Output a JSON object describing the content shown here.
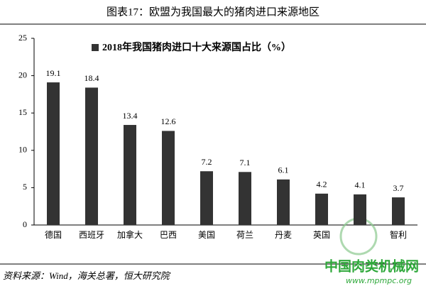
{
  "chart_data": {
    "type": "bar",
    "title": "图表17：欧盟为我国最大的猪肉进口来源地区",
    "legend": "2018年我国猪肉进口十大来源国占比（%）",
    "categories": [
      "德国",
      "西班牙",
      "加拿大",
      "巴西",
      "美国",
      "荷兰",
      "丹麦",
      "英国",
      null,
      "智利"
    ],
    "values": [
      19.1,
      18.4,
      13.4,
      12.6,
      7.2,
      7.1,
      6.1,
      4.2,
      4.1,
      3.7
    ],
    "color": "#333333",
    "ylim": [
      0,
      25
    ],
    "yticks": [
      0,
      5,
      10,
      15,
      20,
      25
    ],
    "grid": false,
    "source": "资料来源：Wind，海关总署，恒大研究院",
    "watermark": "中国肉类机械网",
    "watermark_url": "www.mpmpc.org"
  }
}
